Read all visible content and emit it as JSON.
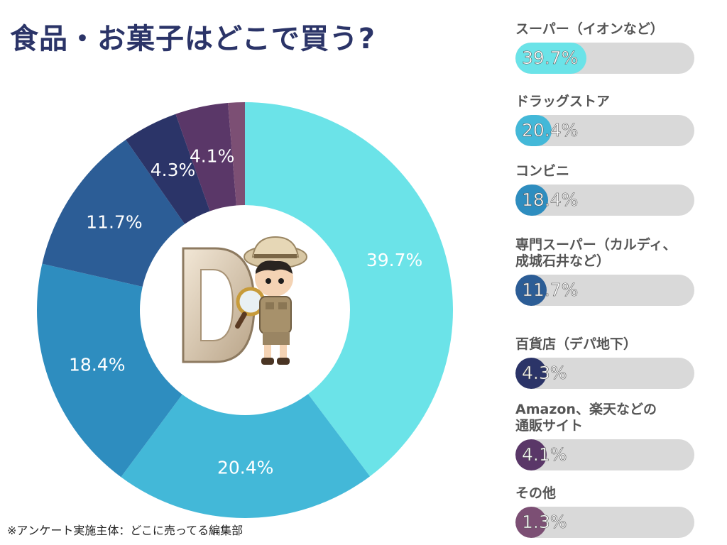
{
  "title": "食品・お菓子はどこで買う?",
  "note": "※アンケート実施主体：どこに売ってる編集部",
  "icon": "explorer-mascot-with-magnifier-and-letter-d",
  "chart_data": [
    {
      "type": "donut",
      "categories": [
        "スーパー（イオンなど）",
        "ドラッグストア",
        "コンビニ",
        "専門スーパー（カルディ、成城石井など）",
        "百貨店（デパ地下）",
        "Amazon、楽天などの通販サイト",
        "その他"
      ],
      "values": [
        39.7,
        20.4,
        18.4,
        11.7,
        4.3,
        4.1,
        1.3
      ],
      "labels": [
        "39.7%",
        "20.4%",
        "18.4%",
        "11.7%",
        "4.3%",
        "4.1%",
        ""
      ],
      "colors": [
        "#6be3e8",
        "#43b8d8",
        "#2e8dbf",
        "#2c5d96",
        "#2b3468",
        "#5a3768",
        "#7c4f74"
      ],
      "start": "top",
      "direction": "clockwise"
    },
    {
      "type": "bar",
      "orientation": "horizontal",
      "xlim": [
        0,
        100
      ],
      "items": [
        {
          "label_lines": [
            "スーパー（イオンなど）"
          ],
          "value": 39.7,
          "text": "39.7%",
          "color": "#6be3e8"
        },
        {
          "label_lines": [
            "ドラッグストア"
          ],
          "value": 20.4,
          "text": "20.4%",
          "color": "#43b8d8"
        },
        {
          "label_lines": [
            "コンビニ"
          ],
          "value": 18.4,
          "text": "18.4%",
          "color": "#2e8dbf"
        },
        {
          "label_lines": [
            "専門スーパー（カルディ、",
            "成城石井など）"
          ],
          "value": 11.7,
          "text": "11.7%",
          "color": "#2c5d96"
        },
        {
          "label_lines": [
            "百貨店（デパ地下）"
          ],
          "value": 4.3,
          "text": "4.3%",
          "color": "#2b3468"
        },
        {
          "label_lines": [
            "Amazon、楽天などの",
            "通販サイト"
          ],
          "value": 4.1,
          "text": "4.1%",
          "color": "#5a3768"
        },
        {
          "label_lines": [
            "その他"
          ],
          "value": 1.3,
          "text": "1.3%",
          "color": "#7c4f74"
        }
      ]
    }
  ]
}
